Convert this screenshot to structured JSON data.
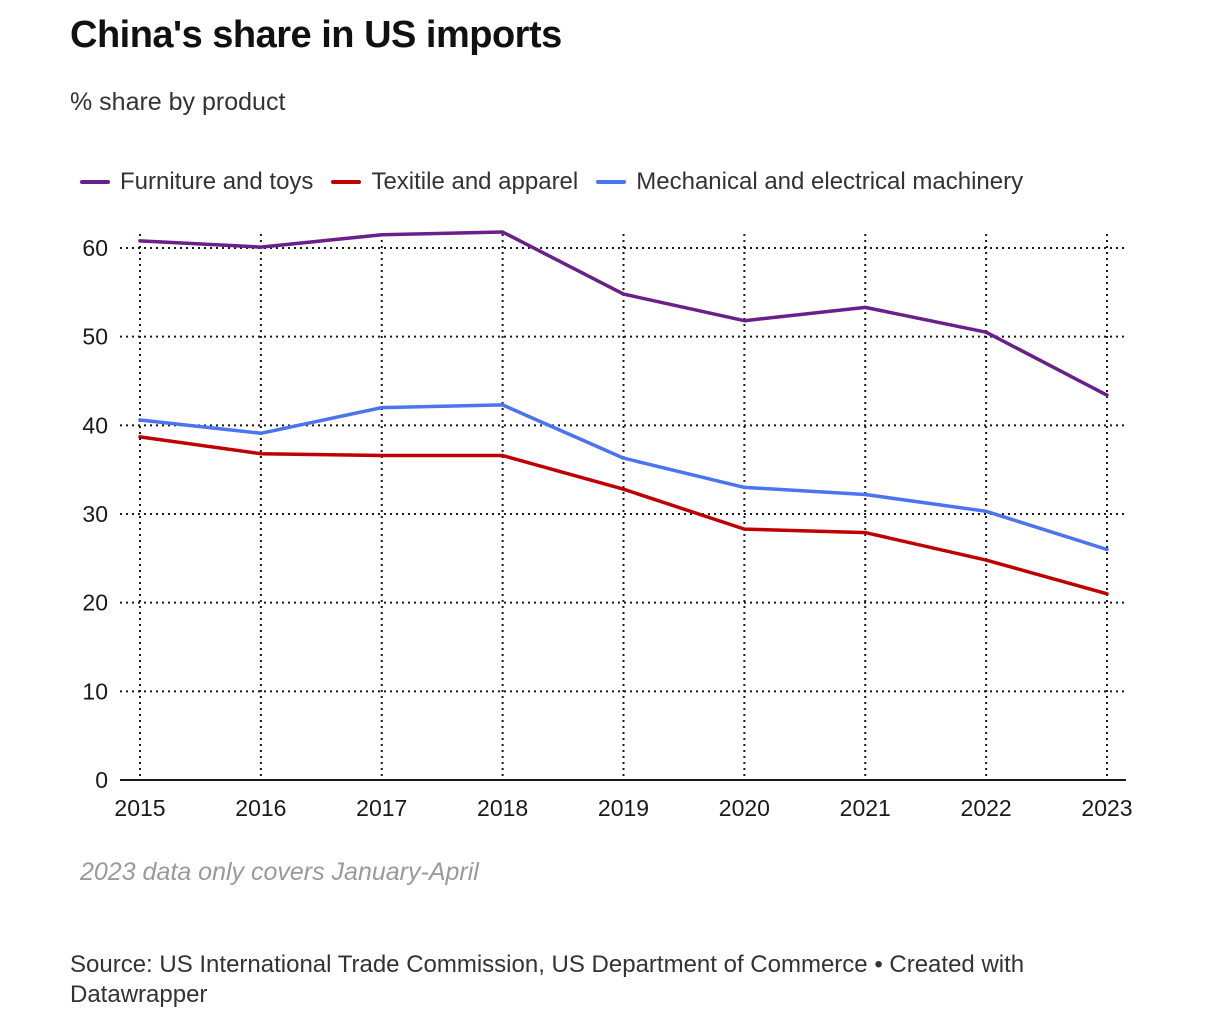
{
  "header": {
    "title": "China's share in US imports",
    "subtitle": "% share by product"
  },
  "chart_data": {
    "type": "line",
    "title": "China's share in US imports",
    "subtitle": "% share by product",
    "xlabel": "",
    "ylabel": "",
    "x": [
      "2015",
      "2016",
      "2017",
      "2018",
      "2019",
      "2020",
      "2021",
      "2022",
      "2023"
    ],
    "y_ticks": [
      "0",
      "10",
      "20",
      "30",
      "40",
      "50",
      "60"
    ],
    "ylim": [
      0,
      60
    ],
    "grid": true,
    "legend_position": "top-left",
    "series": [
      {
        "name": "Furniture and toys",
        "color": "#6a1f8a",
        "values": [
          60.8,
          60.1,
          61.5,
          61.8,
          54.8,
          51.8,
          53.3,
          50.5,
          43.4
        ]
      },
      {
        "name": "Texitile and apparel",
        "color": "#c00000",
        "values": [
          38.7,
          36.8,
          36.6,
          36.6,
          32.8,
          28.3,
          27.9,
          24.8,
          21.0
        ]
      },
      {
        "name": "Mechanical and electrical machinery",
        "color": "#4a74f0",
        "values": [
          40.6,
          39.1,
          42.0,
          42.3,
          36.3,
          33.0,
          32.2,
          30.3,
          26.0
        ]
      }
    ]
  },
  "footer": {
    "note": "2023 data only covers January-April",
    "source": "Source: US International Trade Commission, US Department of Commerce • Created with Datawrapper"
  }
}
